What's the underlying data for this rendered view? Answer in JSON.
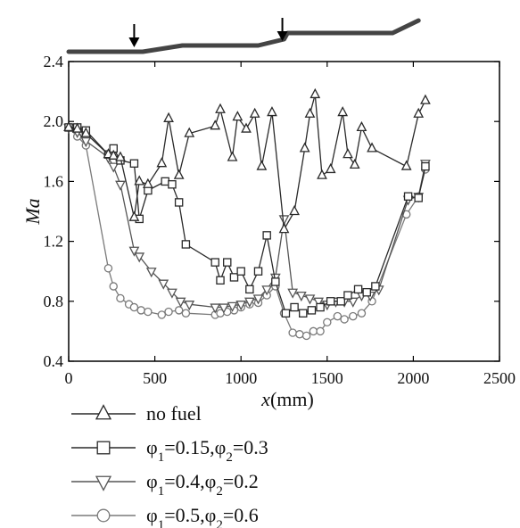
{
  "chart_data": {
    "type": "line",
    "xlabel_main": "x",
    "xlabel_unit": "(mm)",
    "ylabel": "Ma",
    "xlim": [
      0,
      2500
    ],
    "ylim": [
      0.4,
      2.4
    ],
    "xticks": [
      0,
      500,
      1000,
      1500,
      2000,
      2500
    ],
    "yticks": [
      0.4,
      0.8,
      1.2,
      1.6,
      2.0,
      2.4
    ],
    "ytick_labels": [
      "0.4",
      "0.8",
      "1.2",
      "1.6",
      "2.0",
      "2.4"
    ],
    "grid": false,
    "legend_position": "bottom-left, below plot",
    "series": [
      {
        "name": "no fuel",
        "marker": "triangle-up",
        "color": "#2a2a2a",
        "x": [
          0,
          50,
          100,
          230,
          260,
          300,
          380,
          410,
          460,
          540,
          580,
          640,
          700,
          850,
          880,
          950,
          980,
          1030,
          1080,
          1120,
          1180,
          1250,
          1310,
          1370,
          1400,
          1430,
          1470,
          1520,
          1590,
          1620,
          1660,
          1700,
          1760,
          1960,
          2030,
          2070
        ],
        "y": [
          1.96,
          1.95,
          1.92,
          1.78,
          1.77,
          1.76,
          1.36,
          1.6,
          1.58,
          1.72,
          2.02,
          1.64,
          1.92,
          1.97,
          2.08,
          1.76,
          2.03,
          1.95,
          2.05,
          1.7,
          2.06,
          1.28,
          1.4,
          1.82,
          2.05,
          2.18,
          1.64,
          1.68,
          2.06,
          1.78,
          1.71,
          1.96,
          1.82,
          1.7,
          2.05,
          2.14
        ]
      },
      {
        "name": "φ1=0.15,φ2=0.3",
        "marker": "square",
        "color": "#2a2a2a",
        "x": [
          0,
          50,
          100,
          230,
          260,
          300,
          380,
          410,
          460,
          560,
          600,
          640,
          680,
          850,
          880,
          920,
          960,
          1000,
          1050,
          1100,
          1150,
          1200,
          1260,
          1310,
          1360,
          1410,
          1460,
          1520,
          1580,
          1620,
          1680,
          1730,
          1780,
          1970,
          2030,
          2070
        ],
        "y": [
          1.96,
          1.96,
          1.94,
          1.78,
          1.82,
          1.74,
          1.72,
          1.35,
          1.54,
          1.6,
          1.58,
          1.46,
          1.18,
          1.06,
          0.94,
          1.06,
          0.96,
          1.0,
          0.88,
          1.0,
          1.24,
          0.93,
          0.72,
          0.76,
          0.72,
          0.74,
          0.76,
          0.8,
          0.8,
          0.84,
          0.88,
          0.86,
          0.9,
          1.5,
          1.49,
          1.7
        ]
      },
      {
        "name": "φ1=0.4,φ2=0.2",
        "marker": "triangle-down",
        "color": "#555555",
        "x": [
          0,
          50,
          100,
          230,
          260,
          300,
          380,
          410,
          480,
          550,
          600,
          650,
          700,
          850,
          900,
          950,
          1000,
          1050,
          1100,
          1150,
          1200,
          1250,
          1300,
          1350,
          1400,
          1450,
          1500,
          1550,
          1600,
          1650,
          1700,
          1750,
          1800,
          1970,
          2030,
          2070
        ],
        "y": [
          1.96,
          1.93,
          1.87,
          1.76,
          1.7,
          1.58,
          1.14,
          1.1,
          1.0,
          0.92,
          0.86,
          0.8,
          0.78,
          0.76,
          0.76,
          0.77,
          0.78,
          0.8,
          0.82,
          0.88,
          0.96,
          1.35,
          0.86,
          0.84,
          0.82,
          0.8,
          0.78,
          0.8,
          0.8,
          0.8,
          0.84,
          0.84,
          0.88,
          1.48,
          1.5,
          1.72
        ]
      },
      {
        "name": "φ1=0.5,φ2=0.6",
        "marker": "circle",
        "color": "#7a7a7a",
        "x": [
          0,
          50,
          100,
          230,
          260,
          300,
          350,
          380,
          420,
          460,
          540,
          580,
          640,
          680,
          850,
          880,
          920,
          960,
          1000,
          1050,
          1100,
          1150,
          1200,
          1250,
          1300,
          1340,
          1380,
          1420,
          1460,
          1500,
          1560,
          1600,
          1650,
          1700,
          1760,
          1960,
          2030,
          2070
        ],
        "y": [
          1.96,
          1.9,
          1.84,
          1.02,
          0.9,
          0.82,
          0.78,
          0.76,
          0.74,
          0.73,
          0.71,
          0.73,
          0.74,
          0.72,
          0.71,
          0.72,
          0.73,
          0.74,
          0.76,
          0.78,
          0.79,
          0.84,
          0.9,
          0.72,
          0.59,
          0.58,
          0.57,
          0.6,
          0.6,
          0.66,
          0.7,
          0.68,
          0.7,
          0.72,
          0.8,
          1.38,
          1.5,
          1.68
        ]
      }
    ],
    "top_profile": {
      "color": "#444444",
      "x": [
        0,
        430,
        660,
        1100,
        1250,
        1270,
        1880,
        2030
      ],
      "level": [
        0,
        0,
        1,
        1,
        2,
        3,
        3,
        5
      ],
      "arrows_x": [
        380,
        1240
      ]
    }
  },
  "legend": {
    "entries": [
      {
        "label_html": "no fuel"
      },
      {
        "label_html": "φ<tspan baseline-shift='sub' font-size='15'>1</tspan>=0.15,φ<tspan baseline-shift='sub' font-size='15'>2</tspan>=0.3"
      },
      {
        "label_html": "φ<tspan baseline-shift='sub' font-size='15'>1</tspan>=0.4,φ<tspan baseline-shift='sub' font-size='15'>2</tspan>=0.2"
      },
      {
        "label_html": "φ<tspan baseline-shift='sub' font-size='15'>1</tspan>=0.5,φ<tspan baseline-shift='sub' font-size='15'>2</tspan>=0.6"
      }
    ]
  }
}
